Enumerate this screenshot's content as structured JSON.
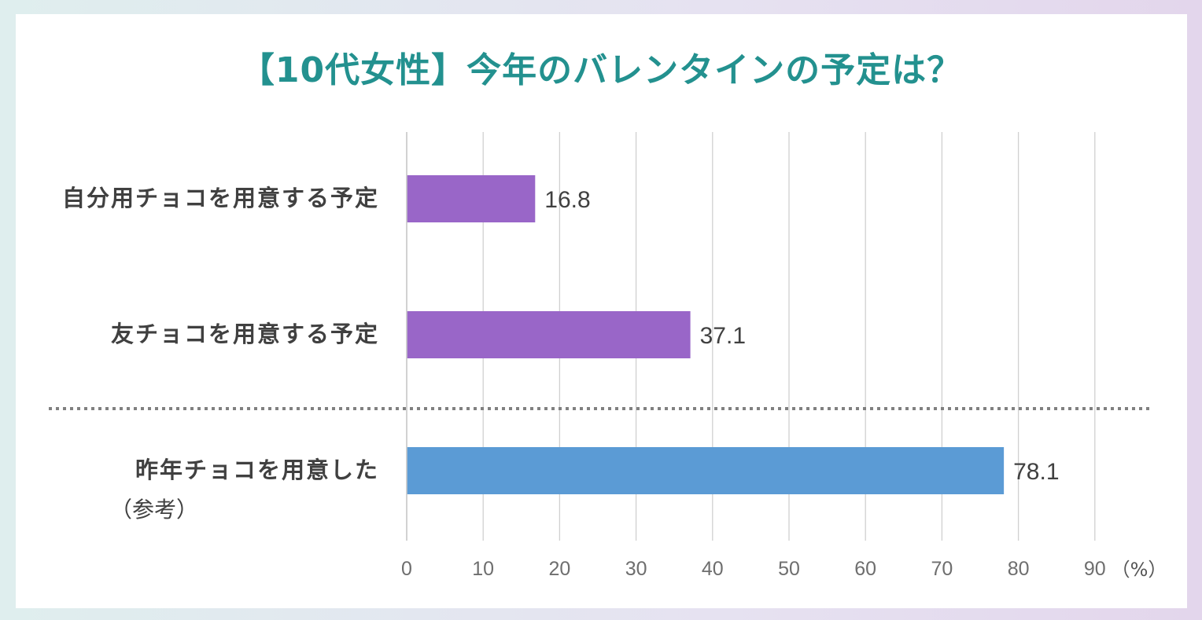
{
  "chart_data": {
    "type": "bar",
    "orientation": "horizontal",
    "title": "【10代女性】今年のバレンタインの予定は？",
    "categories": [
      {
        "label": "自分用チョコを用意する予定",
        "sublabel": "",
        "value": 16.8,
        "value_label": "16.8",
        "color": "#9966c8"
      },
      {
        "label": "友チョコを用意する予定",
        "sublabel": "",
        "value": 37.1,
        "value_label": "37.1",
        "color": "#9966c8"
      },
      {
        "label": "昨年チョコを用意した",
        "sublabel": "（参考）",
        "value": 78.1,
        "value_label": "78.1",
        "color": "#5b9bd5"
      }
    ],
    "x_ticks": [
      "0",
      "10",
      "20",
      "30",
      "40",
      "50",
      "60",
      "70",
      "80",
      "90"
    ],
    "xlim": [
      0,
      90
    ],
    "unit_label": "（%）",
    "grid": true,
    "separator": "dotted line between the second and third categories"
  }
}
